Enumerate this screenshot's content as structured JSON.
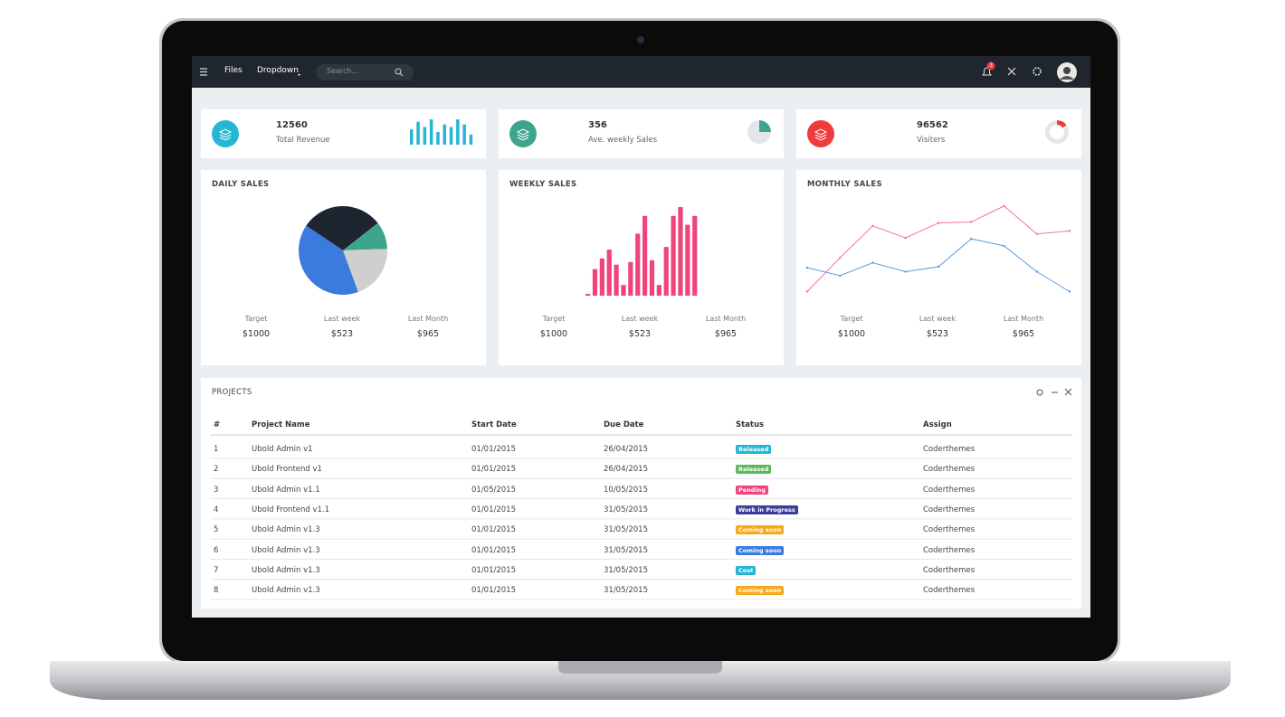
{
  "navbar": {
    "links": [
      "Files",
      "Dropdown"
    ],
    "search_placeholder": "Search...",
    "notification_count": 3
  },
  "stats": [
    {
      "value": 12560,
      "label": "Total Revenue",
      "color": "#26b6d4",
      "chart": {
        "type": "bar",
        "values": [
          6,
          9,
          7,
          10,
          5,
          8,
          7,
          10,
          8,
          4
        ],
        "ylim": [
          0,
          10
        ],
        "color": "#26b6d4"
      }
    },
    {
      "value": 356,
      "label": "Ave. weekly Sales",
      "color": "#3ea58c",
      "chart": {
        "type": "pie",
        "values": [
          25,
          75
        ],
        "colors": [
          "#3ea58c",
          "#e3e6e8"
        ]
      }
    },
    {
      "value": 96562,
      "label": "Visiters",
      "color": "#ef3b3b",
      "chart": {
        "type": "donut",
        "values": [
          15,
          85
        ],
        "colors": [
          "#ef3b3b",
          "#e3e6e8"
        ]
      }
    }
  ],
  "panels": [
    {
      "title": "DAILY SALES",
      "chart": {
        "type": "pie",
        "values": [
          30,
          10,
          20,
          40
        ],
        "colors": [
          "#1c2530",
          "#3ea58c",
          "#cfcfcf",
          "#3a7bdd"
        ]
      },
      "summary": [
        {
          "label": "Target",
          "value": "$1000"
        },
        {
          "label": "Last week",
          "value": "$523"
        },
        {
          "label": "Last Month",
          "value": "$965"
        }
      ]
    },
    {
      "title": "WEEKLY SALES",
      "chart": {
        "type": "bar",
        "values": [
          2,
          30,
          42,
          52,
          35,
          12,
          38,
          70,
          90,
          40,
          12,
          55,
          90,
          100,
          80,
          90
        ],
        "ylim": [
          0,
          100
        ],
        "color": "#f0447a"
      },
      "summary": [
        {
          "label": "Target",
          "value": "$1000"
        },
        {
          "label": "Last week",
          "value": "$523"
        },
        {
          "label": "Last Month",
          "value": "$965"
        }
      ]
    },
    {
      "title": "MONTHLY SALES",
      "chart": {
        "type": "line",
        "ylim": [
          0,
          100
        ],
        "series": [
          {
            "color": "#f573a0",
            "values": [
              5,
              39,
              71,
              59,
              74,
              75,
              91,
              63,
              66
            ]
          },
          {
            "color": "#5b9be0",
            "values": [
              29,
              21,
              34,
              25,
              30,
              58,
              51,
              25,
              5
            ]
          }
        ]
      },
      "summary": [
        {
          "label": "Target",
          "value": "$1000"
        },
        {
          "label": "Last week",
          "value": "$523"
        },
        {
          "label": "Last Month",
          "value": "$965"
        }
      ]
    }
  ],
  "projects": {
    "title": "PROJECTS",
    "headers": [
      "#",
      "Project Name",
      "Start Date",
      "Due Date",
      "Status",
      "Assign"
    ],
    "rows": [
      [
        "1",
        "Ubold Admin v1",
        "01/01/2015",
        "26/04/2015",
        {
          "text": "Released",
          "color": "#26b6d4"
        },
        "Coderthemes"
      ],
      [
        "2",
        "Ubold Frontend v1",
        "01/01/2015",
        "26/04/2015",
        {
          "text": "Released",
          "color": "#5cb85c"
        },
        "Coderthemes"
      ],
      [
        "3",
        "Ubold Admin v1.1",
        "01/05/2015",
        "10/05/2015",
        {
          "text": "Pending",
          "color": "#f0447a"
        },
        "Coderthemes"
      ],
      [
        "4",
        "Ubold Frontend v1.1",
        "01/01/2015",
        "31/05/2015",
        {
          "text": "Work in Progress",
          "color": "#3b3d9b"
        },
        "Coderthemes"
      ],
      [
        "5",
        "Ubold Admin v1.3",
        "01/01/2015",
        "31/05/2015",
        {
          "text": "Coming soon",
          "color": "#f7a81b"
        },
        "Coderthemes"
      ],
      [
        "6",
        "Ubold Admin v1.3",
        "01/01/2015",
        "31/05/2015",
        {
          "text": "Coming soon",
          "color": "#3a7bdd"
        },
        "Coderthemes"
      ],
      [
        "7",
        "Ubold Admin v1.3",
        "01/01/2015",
        "31/05/2015",
        {
          "text": "Cool",
          "color": "#26b6d4"
        },
        "Coderthemes"
      ],
      [
        "8",
        "Ubold Admin v1.3",
        "01/01/2015",
        "31/05/2015",
        {
          "text": "Coming soon",
          "color": "#f7a81b"
        },
        "Coderthemes"
      ]
    ]
  }
}
